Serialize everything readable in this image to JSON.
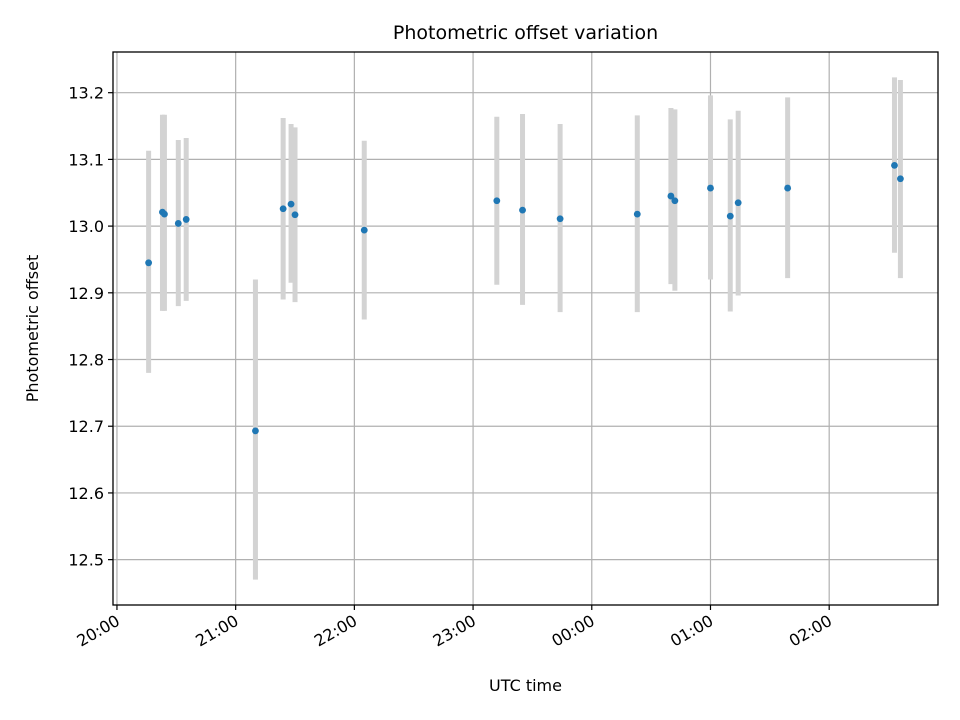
{
  "chart_data": {
    "type": "scatter",
    "title": "Photometric offset variation",
    "xlabel": "UTC time",
    "ylabel": "Photometric offset",
    "x_axis_type": "time",
    "xlim": [
      "19:58",
      "02:55"
    ],
    "ylim": [
      12.432,
      13.261
    ],
    "x_ticks": [
      "20:00",
      "21:00",
      "22:00",
      "23:00",
      "00:00",
      "01:00",
      "02:00"
    ],
    "y_ticks": [
      12.5,
      12.6,
      12.7,
      12.8,
      12.9,
      13.0,
      13.1,
      13.2
    ],
    "grid": true,
    "colors": {
      "point": "#1f77b4",
      "error_bar": "#d3d3d3",
      "grid": "#b0b0b0"
    },
    "points": [
      {
        "x": "20:16",
        "y": 12.945,
        "err_low": 12.78,
        "err_high": 13.113
      },
      {
        "x": "20:23",
        "y": 13.021,
        "err_low": 12.873,
        "err_high": 13.167
      },
      {
        "x": "20:24",
        "y": 13.018,
        "err_low": 12.873,
        "err_high": 13.167
      },
      {
        "x": "20:31",
        "y": 13.004,
        "err_low": 12.88,
        "err_high": 13.129
      },
      {
        "x": "20:35",
        "y": 13.01,
        "err_low": 12.888,
        "err_high": 13.132
      },
      {
        "x": "21:10",
        "y": 12.693,
        "err_low": 12.47,
        "err_high": 12.92
      },
      {
        "x": "21:24",
        "y": 13.026,
        "err_low": 12.89,
        "err_high": 13.162
      },
      {
        "x": "21:28",
        "y": 13.033,
        "err_low": 12.915,
        "err_high": 13.153
      },
      {
        "x": "21:30",
        "y": 13.017,
        "err_low": 12.886,
        "err_high": 13.148
      },
      {
        "x": "22:05",
        "y": 12.994,
        "err_low": 12.86,
        "err_high": 13.128
      },
      {
        "x": "23:12",
        "y": 13.038,
        "err_low": 12.912,
        "err_high": 13.164
      },
      {
        "x": "23:25",
        "y": 13.024,
        "err_low": 12.882,
        "err_high": 13.168
      },
      {
        "x": "23:44",
        "y": 13.011,
        "err_low": 12.871,
        "err_high": 13.153
      },
      {
        "x": "00:23",
        "y": 13.018,
        "err_low": 12.871,
        "err_high": 13.166
      },
      {
        "x": "00:40",
        "y": 13.045,
        "err_low": 12.913,
        "err_high": 13.177
      },
      {
        "x": "00:42",
        "y": 13.038,
        "err_low": 12.903,
        "err_high": 13.175
      },
      {
        "x": "01:00",
        "y": 13.057,
        "err_low": 12.92,
        "err_high": 13.196
      },
      {
        "x": "01:10",
        "y": 13.015,
        "err_low": 12.872,
        "err_high": 13.16
      },
      {
        "x": "01:14",
        "y": 13.035,
        "err_low": 12.896,
        "err_high": 13.173
      },
      {
        "x": "01:39",
        "y": 13.057,
        "err_low": 12.922,
        "err_high": 13.193
      },
      {
        "x": "02:33",
        "y": 13.091,
        "err_low": 12.96,
        "err_high": 13.223
      },
      {
        "x": "02:36",
        "y": 13.071,
        "err_low": 12.922,
        "err_high": 13.219
      }
    ]
  }
}
